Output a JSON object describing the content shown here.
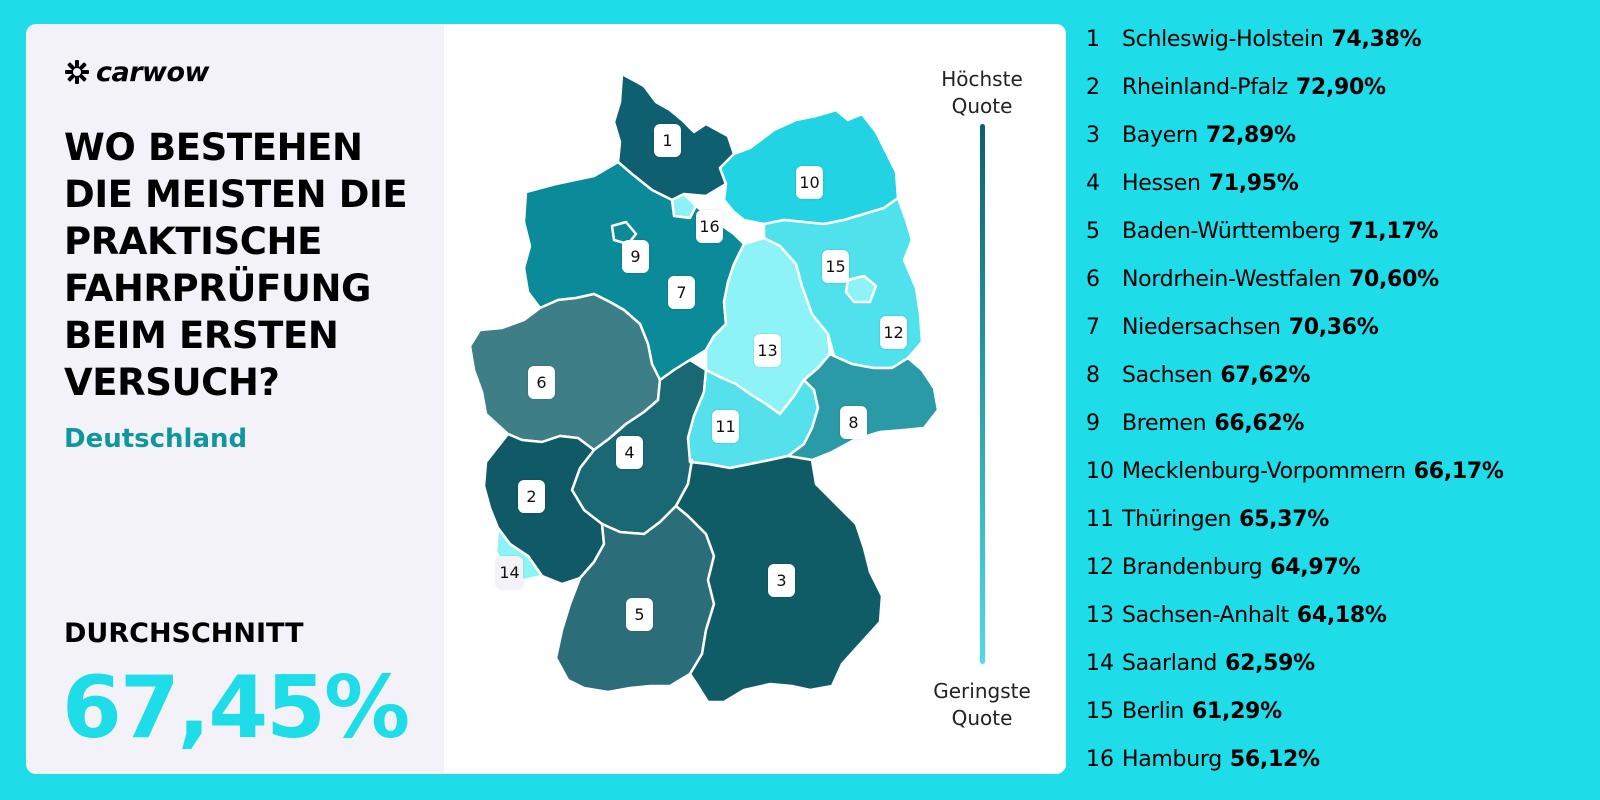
{
  "brand": {
    "logo_text": "carwow"
  },
  "headline": "WO BESTEHEN DIE MEISTEN DIE PRAKTISCHE FAHRPRÜFUNG BEIM ERSTEN VERSUCH?",
  "country": "Deutschland",
  "average": {
    "label": "DURCHSCHNITT",
    "value": "67,45%"
  },
  "legend": {
    "top_line1": "Höchste",
    "top_line2": "Quote",
    "bottom_line1": "Geringste",
    "bottom_line2": "Quote"
  },
  "colors": {
    "background": "#1fdce9",
    "accent_text": "#11969f",
    "scale_high": "#0c6070",
    "scale_low": "#8ef3f7"
  },
  "ranking": [
    {
      "rank": "1",
      "name": "Schleswig-Holstein",
      "value": "74,38%"
    },
    {
      "rank": "2",
      "name": "Rheinland-Pfalz",
      "value": "72,90%"
    },
    {
      "rank": "3",
      "name": "Bayern",
      "value": "72,89%"
    },
    {
      "rank": "4",
      "name": "Hessen",
      "value": "71,95%"
    },
    {
      "rank": "5",
      "name": "Baden-Württemberg",
      "value": "71,17%"
    },
    {
      "rank": "6",
      "name": "Nordrhein-Westfalen",
      "value": "70,60%"
    },
    {
      "rank": "7",
      "name": "Niedersachsen",
      "value": "70,36%"
    },
    {
      "rank": "8",
      "name": "Sachsen",
      "value": "67,62%"
    },
    {
      "rank": "9",
      "name": "Bremen",
      "value": "66,62%"
    },
    {
      "rank": "10",
      "name": "Mecklenburg-Vorpommern",
      "value": "66,17%"
    },
    {
      "rank": "11",
      "name": "Thüringen",
      "value": "65,37%"
    },
    {
      "rank": "12",
      "name": "Brandenburg",
      "value": "64,97%"
    },
    {
      "rank": "13",
      "name": "Sachsen-Anhalt",
      "value": "64,18%"
    },
    {
      "rank": "14",
      "name": "Saarland",
      "value": "62,59%"
    },
    {
      "rank": "15",
      "name": "Berlin",
      "value": "61,29%"
    },
    {
      "rank": "16",
      "name": "Hamburg",
      "value": "56,12%"
    }
  ],
  "map_markers": [
    "1",
    "2",
    "3",
    "4",
    "5",
    "6",
    "7",
    "8",
    "9",
    "10",
    "11",
    "12",
    "13",
    "14",
    "15",
    "16"
  ]
}
